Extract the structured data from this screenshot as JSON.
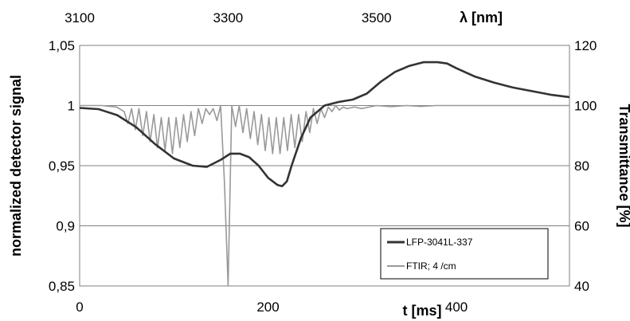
{
  "chart_data": {
    "type": "line",
    "title": "",
    "xlabel": "t [ms]",
    "x2label": "λ [nm]",
    "ylabel": "normalized detector signal",
    "y2label": "Transmittance [%]",
    "xlim": [
      0,
      520
    ],
    "ylim": [
      0.85,
      1.05
    ],
    "x2lim": [
      3100,
      3760
    ],
    "y2lim": [
      40,
      120
    ],
    "xticks": [
      "0",
      "200",
      "400"
    ],
    "xtick_values": [
      0,
      200,
      400
    ],
    "x2ticks": [
      "3100",
      "3300",
      "3500"
    ],
    "x2tick_values": [
      3100,
      3300,
      3500
    ],
    "yticks": [
      "0,85",
      "0,9",
      "0,95",
      "1",
      "1,05"
    ],
    "ytick_values": [
      0.85,
      0.9,
      0.95,
      1.0,
      1.05
    ],
    "y2ticks": [
      "40",
      "60",
      "80",
      "100",
      "120"
    ],
    "y2tick_values": [
      40,
      60,
      80,
      100,
      120
    ],
    "grid": "horizontal",
    "legend_position": "bottom-right",
    "legend": [
      "LFP-3041L-337",
      "FTIR; 4 /cm"
    ],
    "series": [
      {
        "name": "LFP-3041L-337",
        "axis": "left",
        "color": "#333333",
        "x": [
          0,
          20,
          40,
          60,
          80,
          100,
          120,
          135,
          150,
          160,
          170,
          180,
          190,
          200,
          210,
          215,
          220,
          225,
          235,
          245,
          260,
          275,
          290,
          305,
          320,
          335,
          350,
          365,
          380,
          390,
          400,
          420,
          440,
          460,
          480,
          500,
          520
        ],
        "values": [
          0.998,
          0.997,
          0.992,
          0.982,
          0.968,
          0.956,
          0.95,
          0.949,
          0.955,
          0.96,
          0.96,
          0.957,
          0.95,
          0.94,
          0.934,
          0.933,
          0.937,
          0.95,
          0.973,
          0.99,
          1.0,
          1.003,
          1.005,
          1.01,
          1.02,
          1.028,
          1.033,
          1.036,
          1.036,
          1.035,
          1.031,
          1.024,
          1.019,
          1.015,
          1.012,
          1.009,
          1.007
        ]
      },
      {
        "name": "FTIR; 4 /cm",
        "axis": "right",
        "color": "#999999",
        "x2": [
          3100,
          3130,
          3150,
          3160,
          3165,
          3170,
          3175,
          3180,
          3185,
          3190,
          3195,
          3200,
          3205,
          3210,
          3215,
          3220,
          3225,
          3230,
          3235,
          3240,
          3245,
          3250,
          3255,
          3260,
          3265,
          3270,
          3275,
          3280,
          3285,
          3290,
          3295,
          3300,
          3305,
          3310,
          3315,
          3320,
          3325,
          3330,
          3335,
          3340,
          3345,
          3350,
          3355,
          3360,
          3365,
          3370,
          3375,
          3380,
          3385,
          3390,
          3395,
          3400,
          3405,
          3410,
          3415,
          3420,
          3425,
          3430,
          3435,
          3440,
          3445,
          3450,
          3455,
          3460,
          3470,
          3480,
          3490,
          3500,
          3520,
          3540,
          3560,
          3580,
          3600,
          3650,
          3700,
          3760
        ],
        "values": [
          100,
          100,
          99.5,
          98,
          94,
          99,
          92,
          99,
          90,
          98,
          88,
          97,
          86,
          96,
          85,
          96,
          84,
          96,
          86,
          97,
          88,
          98,
          90,
          99,
          94,
          99,
          97,
          99,
          95,
          100,
          75,
          40,
          100,
          93,
          100,
          91,
          99,
          89,
          98,
          87,
          97,
          85,
          96,
          84,
          96,
          84,
          96,
          85,
          97,
          86,
          97,
          88,
          98,
          91,
          99,
          94,
          99,
          96,
          99.5,
          98,
          100,
          98.5,
          99.5,
          99,
          99.5,
          99,
          99.5,
          100,
          99.6,
          100,
          99.7,
          100,
          100,
          100,
          100,
          100
        ]
      }
    ]
  }
}
